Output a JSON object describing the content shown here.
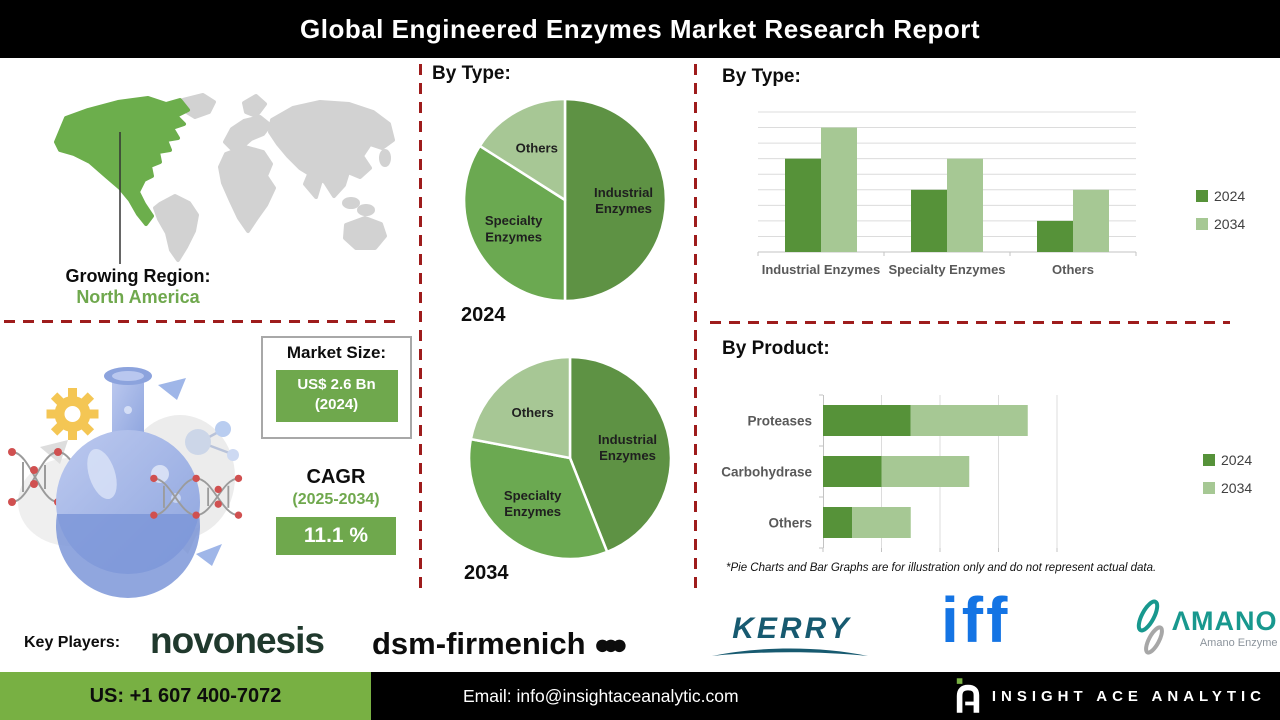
{
  "title": "Global Engineered Enzymes Market Research Report",
  "growing_region": {
    "label": "Growing Region:",
    "value": "North America"
  },
  "market_size": {
    "label": "Market Size:",
    "value": "US$ 2.6 Bn",
    "year": "(2024)"
  },
  "cagr": {
    "label": "CAGR",
    "period": "(2025-2034)",
    "value": "11.1 %"
  },
  "disclaimer": "*Pie Charts and Bar Graphs are for illustration only and do not represent actual data.",
  "key_players": {
    "label": "Key Players:",
    "novonesis": "novonesis",
    "dsm": "dsm-firmenich",
    "dsm_dots": "●●●",
    "kerry": "KERRY",
    "iff": "iff",
    "amano": "ΛMANO",
    "amano_sub": "Amano Enzyme"
  },
  "footer": {
    "phone": "US: +1 607 400-7072",
    "email": "Email: info@insightaceanalytic.com",
    "brand": "INSIGHT ACE ANALYTIC"
  },
  "colors": {
    "accent_green": "#6fa84d",
    "series_2024": "#569239",
    "series_2034": "#a6c894",
    "red_dash": "#9e1c1c",
    "map_green": "#6cae4c",
    "map_gray": "#d2d2d2"
  },
  "chart_data": [
    {
      "id": "pie-2024",
      "type": "pie",
      "title": "By Type:",
      "year": "2024",
      "slices": [
        {
          "label": "Industrial Enzymes",
          "value": 50,
          "color": "#5e9244"
        },
        {
          "label": "Specialty Enzymes",
          "value": 34,
          "color": "#6ba951"
        },
        {
          "label": "Others",
          "value": 16,
          "color": "#a7c795"
        }
      ]
    },
    {
      "id": "pie-2034",
      "type": "pie",
      "title": "By Type:",
      "year": "2034",
      "slices": [
        {
          "label": "Industrial Enzymes",
          "value": 44,
          "color": "#5e9244"
        },
        {
          "label": "Specialty Enzymes",
          "value": 34,
          "color": "#6ba951"
        },
        {
          "label": "Others",
          "value": 22,
          "color": "#a7c795"
        }
      ]
    },
    {
      "id": "bar-by-type",
      "type": "bar",
      "title": "By Type:",
      "categories": [
        "Industrial Enzymes",
        "Specialty Enzymes",
        "Others"
      ],
      "series": [
        {
          "name": "2024",
          "color": "#569239",
          "values": [
            6,
            4,
            2
          ]
        },
        {
          "name": "2034",
          "color": "#a6c894",
          "values": [
            8,
            6,
            4
          ]
        }
      ],
      "ylim": [
        0,
        9
      ],
      "grid_step": 1,
      "grid": true,
      "legend_position": "right"
    },
    {
      "id": "bar-by-product",
      "type": "stacked-bar-horizontal",
      "title": "By Product:",
      "categories": [
        "Proteases",
        "Carbohydrase",
        "Others"
      ],
      "series": [
        {
          "name": "2024",
          "color": "#569239",
          "values": [
            1.5,
            1,
            0.5
          ]
        },
        {
          "name": "2034",
          "color": "#a6c894",
          "values": [
            2,
            1.5,
            1
          ]
        }
      ],
      "xlim": [
        0,
        4
      ],
      "grid_step": 1,
      "grid": true,
      "legend_position": "right"
    }
  ]
}
